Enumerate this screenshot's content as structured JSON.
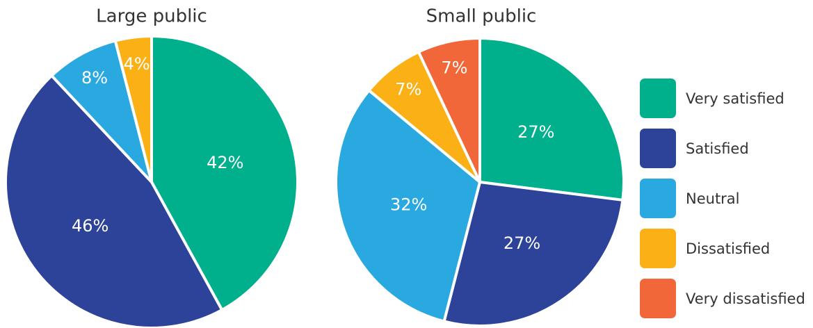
{
  "chart_data": [
    {
      "type": "pie",
      "title": "Large public",
      "categories": [
        "Very satisfied",
        "Satisfied",
        "Neutral",
        "Dissatisfied"
      ],
      "values": [
        42,
        46,
        8,
        4
      ],
      "value_labels": [
        "42%",
        "46%",
        "8%",
        "4%"
      ],
      "colors": [
        "#00b08d",
        "#2c4399",
        "#29a9e0",
        "#fbb116"
      ]
    },
    {
      "type": "pie",
      "title": "Small public",
      "categories": [
        "Very satisfied",
        "Satisfied",
        "Neutral",
        "Dissatisfied",
        "Very dissatisfied"
      ],
      "values": [
        27,
        27,
        32,
        7,
        7
      ],
      "value_labels": [
        "27%",
        "27%",
        "32%",
        "7%",
        "7%"
      ],
      "colors": [
        "#00b08d",
        "#2c4399",
        "#29a9e0",
        "#fbb116",
        "#f2673a"
      ]
    }
  ]
}
